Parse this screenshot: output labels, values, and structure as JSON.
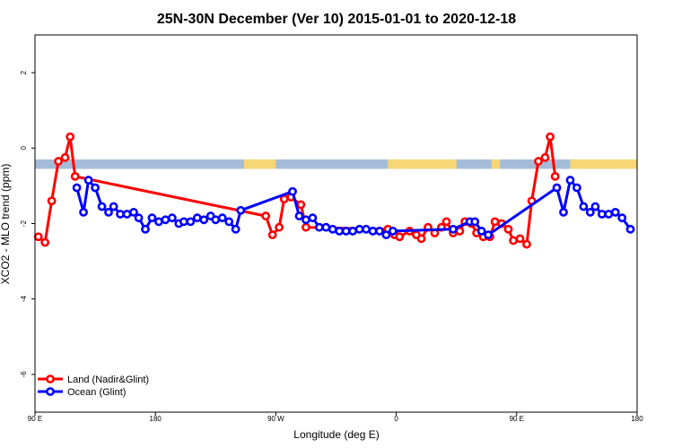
{
  "chart_data": {
    "type": "line",
    "title": "25N-30N December (Ver 10)   2015-01-01 to 2020-12-18",
    "xlabel": "Longitude (deg E)",
    "ylabel": "XCO2 - MLO trend (ppm)",
    "xlim": [
      90,
      450
    ],
    "ylim": [
      -7,
      3
    ],
    "x_ticks": [
      {
        "value": 90,
        "label": "90 E"
      },
      {
        "value": 162,
        "label": "180"
      },
      {
        "value": 234,
        "label": "90 W"
      },
      {
        "value": 306,
        "label": "0"
      },
      {
        "value": 378,
        "label": "90 E"
      },
      {
        "value": 450,
        "label": "180"
      }
    ],
    "y_ticks": [
      {
        "value": -6,
        "label": "-6"
      },
      {
        "value": -4,
        "label": "-4"
      },
      {
        "value": -2,
        "label": "-2"
      },
      {
        "value": 0,
        "label": "0"
      },
      {
        "value": 2,
        "label": "2"
      }
    ],
    "grid": false,
    "legend_position": "bottom-left",
    "band": {
      "ymin": -0.55,
      "ymax": -0.3,
      "ocean_color": "#a4bcd8",
      "land_color": "#f6d675"
    },
    "land_segments": [
      [
        215,
        234
      ],
      [
        301,
        342
      ],
      [
        363,
        368
      ],
      [
        410,
        450
      ]
    ],
    "series": [
      {
        "name": "Land (Nadir&Glint)",
        "color": "#ff0000",
        "points": [
          [
            92,
            -2.35
          ],
          [
            96,
            -2.5
          ],
          [
            100,
            -1.4
          ],
          [
            104,
            -0.35
          ],
          [
            108,
            -0.25
          ],
          [
            111,
            0.3
          ],
          [
            114,
            -0.75
          ],
          [
            228,
            -1.8
          ],
          [
            232,
            -2.3
          ],
          [
            236,
            -2.1
          ],
          [
            239,
            -1.35
          ],
          [
            243,
            -1.3
          ],
          [
            249,
            -1.5
          ],
          [
            252,
            -2.1
          ],
          [
            301,
            -2.15
          ],
          [
            305,
            -2.3
          ],
          [
            308,
            -2.35
          ],
          [
            314,
            -2.2
          ],
          [
            318,
            -2.3
          ],
          [
            321,
            -2.4
          ],
          [
            325,
            -2.1
          ],
          [
            329,
            -2.25
          ],
          [
            333,
            -2.1
          ],
          [
            336,
            -1.95
          ],
          [
            340,
            -2.25
          ],
          [
            344,
            -2.2
          ],
          [
            347,
            -1.95
          ],
          [
            351,
            -2.0
          ],
          [
            354,
            -2.25
          ],
          [
            358,
            -2.35
          ],
          [
            362,
            -2.35
          ],
          [
            365,
            -1.95
          ],
          [
            369,
            -2.0
          ],
          [
            373,
            -2.15
          ],
          [
            376,
            -2.45
          ],
          [
            380,
            -2.4
          ],
          [
            384,
            -2.55
          ],
          [
            387,
            -1.4
          ],
          [
            391,
            -0.35
          ],
          [
            395,
            -0.25
          ],
          [
            398,
            0.3
          ],
          [
            401,
            -0.75
          ]
        ]
      },
      {
        "name": "Ocean (Glint)",
        "color": "#0000ff",
        "points": [
          [
            115,
            -1.05
          ],
          [
            119,
            -1.7
          ],
          [
            122,
            -0.85
          ],
          [
            126,
            -1.05
          ],
          [
            130,
            -1.55
          ],
          [
            134,
            -1.7
          ],
          [
            137,
            -1.55
          ],
          [
            141,
            -1.75
          ],
          [
            145,
            -1.75
          ],
          [
            149,
            -1.7
          ],
          [
            152,
            -1.85
          ],
          [
            156,
            -2.15
          ],
          [
            160,
            -1.85
          ],
          [
            164,
            -1.95
          ],
          [
            168,
            -1.9
          ],
          [
            172,
            -1.85
          ],
          [
            176,
            -2.0
          ],
          [
            179,
            -1.95
          ],
          [
            183,
            -1.95
          ],
          [
            187,
            -1.85
          ],
          [
            191,
            -1.9
          ],
          [
            195,
            -1.8
          ],
          [
            198,
            -1.9
          ],
          [
            202,
            -1.85
          ],
          [
            206,
            -1.95
          ],
          [
            210,
            -2.15
          ],
          [
            213,
            -1.65
          ],
          [
            244,
            -1.15
          ],
          [
            248,
            -1.8
          ],
          [
            252,
            -1.9
          ],
          [
            256,
            -1.85
          ],
          [
            260,
            -2.1
          ],
          [
            264,
            -2.1
          ],
          [
            268,
            -2.15
          ],
          [
            272,
            -2.2
          ],
          [
            276,
            -2.2
          ],
          [
            280,
            -2.2
          ],
          [
            284,
            -2.15
          ],
          [
            288,
            -2.15
          ],
          [
            292,
            -2.2
          ],
          [
            296,
            -2.2
          ],
          [
            300,
            -2.3
          ],
          [
            304,
            -2.2
          ],
          [
            340,
            -2.15
          ],
          [
            350,
            -1.95
          ],
          [
            353,
            -1.95
          ],
          [
            357,
            -2.2
          ],
          [
            361,
            -2.3
          ],
          [
            402,
            -1.05
          ],
          [
            406,
            -1.7
          ],
          [
            410,
            -0.85
          ],
          [
            414,
            -1.05
          ],
          [
            418,
            -1.55
          ],
          [
            422,
            -1.7
          ],
          [
            425,
            -1.55
          ],
          [
            429,
            -1.75
          ],
          [
            433,
            -1.75
          ],
          [
            437,
            -1.7
          ],
          [
            441,
            -1.85
          ],
          [
            446,
            -2.15
          ]
        ]
      }
    ]
  }
}
